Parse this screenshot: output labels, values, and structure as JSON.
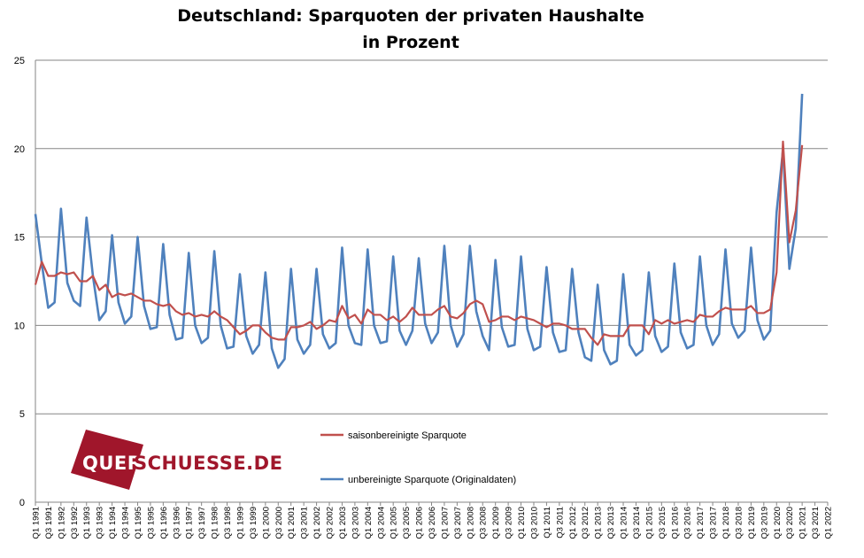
{
  "chart_data": {
    "type": "line",
    "title_line1": "Deutschland: Sparquoten der privaten Haushalte",
    "title_line2": "in Prozent",
    "ylim": [
      0,
      25
    ],
    "yticks": [
      0,
      5,
      10,
      15,
      20,
      25
    ],
    "grid": "horizontal",
    "legend_position": "center-right",
    "quarters_start": "Q1 1991",
    "x_tick_labels": [
      "Q1 1991",
      "Q3 1991",
      "Q1 1992",
      "Q3 1992",
      "Q1 1993",
      "Q3 1993",
      "Q1 1994",
      "Q3 1994",
      "Q1 1995",
      "Q3 1995",
      "Q1 1996",
      "Q3 1996",
      "Q1 1997",
      "Q3 1997",
      "Q1 1998",
      "Q3 1998",
      "Q1 1999",
      "Q3 1999",
      "Q1 2000",
      "Q3 2000",
      "Q1 2001",
      "Q3 2001",
      "Q1 2002",
      "Q3 2002",
      "Q1 2003",
      "Q3 2003",
      "Q1 2004",
      "Q3 2004",
      "Q1 2005",
      "Q3 2005",
      "Q1 2006",
      "Q3 2006",
      "Q1 2007",
      "Q3 2007",
      "Q1 2008",
      "Q3 2008",
      "Q1 2009",
      "Q3 2009",
      "Q1 2010",
      "Q3 2010",
      "Q1 2011",
      "Q3 2011",
      "Q1 2012",
      "Q3 2012",
      "Q1 2013",
      "Q3 2013",
      "Q1 2014",
      "Q3 2014",
      "Q1 2015",
      "Q3 2015",
      "Q1 2016",
      "Q3 2016",
      "Q1 2017",
      "Q3 2017",
      "Q1 2018",
      "Q3 2018",
      "Q1 2019",
      "Q3 2019",
      "Q1 2020",
      "Q3 2020",
      "Q1 2021",
      "Q3 2021",
      "Q1 2022"
    ],
    "series": [
      {
        "name": "saisonbereinigte Sparquote",
        "color": "#c0504d",
        "values": [
          12.3,
          13.6,
          12.8,
          12.8,
          13.0,
          12.9,
          13.0,
          12.5,
          12.5,
          12.8,
          12.0,
          12.3,
          11.6,
          11.8,
          11.7,
          11.8,
          11.6,
          11.4,
          11.4,
          11.2,
          11.1,
          11.2,
          10.8,
          10.6,
          10.7,
          10.5,
          10.6,
          10.5,
          10.8,
          10.5,
          10.3,
          9.9,
          9.5,
          9.7,
          10.0,
          10.0,
          9.6,
          9.3,
          9.2,
          9.2,
          9.9,
          9.9,
          10.0,
          10.2,
          9.8,
          10.0,
          10.3,
          10.2,
          11.1,
          10.4,
          10.6,
          10.1,
          10.9,
          10.6,
          10.6,
          10.3,
          10.5,
          10.2,
          10.5,
          11.0,
          10.6,
          10.6,
          10.6,
          10.9,
          11.1,
          10.5,
          10.4,
          10.7,
          11.2,
          11.4,
          11.2,
          10.2,
          10.3,
          10.5,
          10.5,
          10.3,
          10.5,
          10.4,
          10.3,
          10.1,
          9.9,
          10.1,
          10.1,
          10.0,
          9.8,
          9.8,
          9.8,
          9.3,
          8.9,
          9.5,
          9.4,
          9.4,
          9.4,
          10.0,
          10.0,
          10.0,
          9.5,
          10.3,
          10.1,
          10.3,
          10.1,
          10.2,
          10.3,
          10.2,
          10.6,
          10.5,
          10.5,
          10.8,
          11.0,
          10.9,
          10.9,
          10.9,
          11.1,
          10.7,
          10.7,
          10.9,
          13.0,
          20.4,
          14.7,
          16.5,
          20.2
        ]
      },
      {
        "name": "unbereinigte Sparquote (Originaldaten)",
        "color": "#4f81bd",
        "values": [
          16.3,
          13.5,
          11.0,
          11.3,
          16.6,
          12.4,
          11.4,
          11.1,
          16.1,
          12.8,
          10.3,
          10.8,
          15.1,
          11.3,
          10.1,
          10.5,
          15.0,
          11.1,
          9.8,
          9.9,
          14.6,
          10.6,
          9.2,
          9.3,
          14.1,
          10.0,
          9.0,
          9.3,
          14.2,
          10.0,
          8.7,
          8.8,
          12.9,
          9.4,
          8.4,
          8.9,
          13.0,
          8.7,
          7.6,
          8.1,
          13.2,
          9.2,
          8.4,
          8.9,
          13.2,
          9.5,
          8.7,
          9.0,
          14.4,
          10.0,
          9.0,
          8.9,
          14.3,
          10.0,
          9.0,
          9.1,
          13.9,
          9.7,
          8.9,
          9.7,
          13.8,
          10.1,
          9.0,
          9.6,
          14.5,
          10.0,
          8.8,
          9.5,
          14.5,
          10.8,
          9.4,
          8.6,
          13.7,
          9.9,
          8.8,
          8.9,
          13.9,
          9.8,
          8.6,
          8.8,
          13.3,
          9.6,
          8.5,
          8.6,
          13.2,
          9.6,
          8.2,
          8.0,
          12.3,
          8.6,
          7.8,
          8.0,
          12.9,
          8.9,
          8.3,
          8.6,
          13.0,
          9.4,
          8.5,
          8.8,
          13.5,
          9.6,
          8.7,
          8.9,
          13.9,
          10.0,
          8.9,
          9.5,
          14.3,
          10.1,
          9.3,
          9.7,
          14.4,
          10.3,
          9.2,
          9.7,
          16.4,
          19.9,
          13.2,
          15.5,
          23.1
        ]
      }
    ]
  },
  "logo": {
    "text_left": "QUER",
    "text_right": "SCHUESSE.DE"
  }
}
